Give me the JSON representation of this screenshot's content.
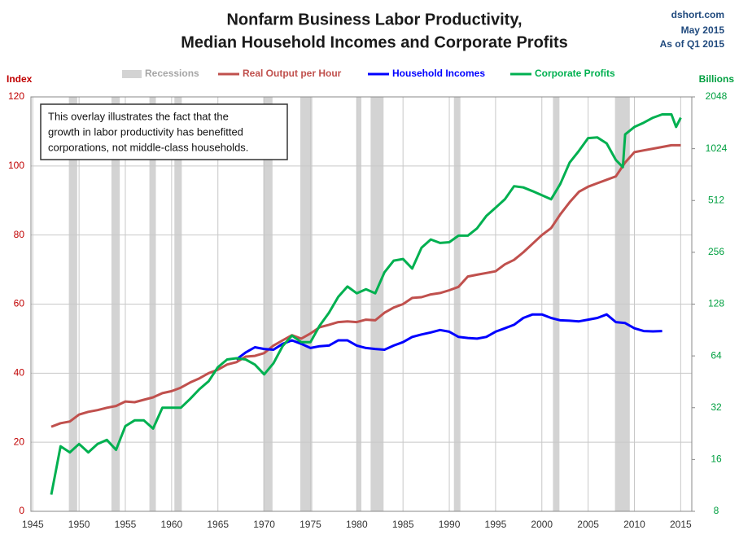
{
  "chart_data": {
    "type": "line",
    "title_lines": [
      "Nonfarm Business Labor Productivity,",
      "Median Household Incomes and Corporate Profits"
    ],
    "source_lines": [
      "dshort.com",
      "May 2015",
      "As of Q1 2015"
    ],
    "annotation_lines": [
      "This overlay illustrates the fact that the",
      "growth in labor productivity  has benefitted",
      "corporations,  not middle-class households."
    ],
    "ylabel": "Index",
    "y2label": "Billions",
    "xlim": [
      1944.8,
      2016.2
    ],
    "xticks": [
      1945,
      1950,
      1955,
      1960,
      1965,
      1970,
      1975,
      1980,
      1985,
      1990,
      1995,
      2000,
      2005,
      2010,
      2015
    ],
    "ylim": [
      0,
      120
    ],
    "yticks": [
      0,
      20,
      40,
      60,
      80,
      100,
      120
    ],
    "y2lim": [
      8,
      2048
    ],
    "y2ticks": [
      8,
      16,
      32,
      64,
      128,
      256,
      512,
      1024,
      2048
    ],
    "y2scale": "log",
    "grid": true,
    "recession_name": "Recessions",
    "recession_color": "#d3d3d3",
    "recessions": [
      [
        1948.9,
        1949.8
      ],
      [
        1953.5,
        1954.4
      ],
      [
        1957.6,
        1958.3
      ],
      [
        1960.3,
        1961.1
      ],
      [
        1969.9,
        1970.9
      ],
      [
        1973.9,
        1975.2
      ],
      [
        1980.0,
        1980.5
      ],
      [
        1981.5,
        1982.9
      ],
      [
        1990.5,
        1991.2
      ],
      [
        2001.2,
        2001.9
      ],
      [
        2007.9,
        2009.5
      ]
    ],
    "series": [
      {
        "name": "Real Output per Hour",
        "color": "#c0504d",
        "axis": "y",
        "x": [
          1947,
          1948,
          1949,
          1950,
          1951,
          1952,
          1953,
          1954,
          1955,
          1956,
          1957,
          1958,
          1959,
          1960,
          1961,
          1962,
          1963,
          1964,
          1965,
          1966,
          1967,
          1968,
          1969,
          1970,
          1971,
          1972,
          1973,
          1974,
          1975,
          1976,
          1977,
          1978,
          1979,
          1980,
          1981,
          1982,
          1983,
          1984,
          1985,
          1986,
          1987,
          1988,
          1989,
          1990,
          1991,
          1992,
          1993,
          1994,
          1995,
          1996,
          1997,
          1998,
          1999,
          2000,
          2001,
          2002,
          2003,
          2004,
          2005,
          2006,
          2007,
          2008,
          2009,
          2010,
          2011,
          2012,
          2013,
          2014,
          2015
        ],
        "values": [
          24.5,
          25.5,
          26,
          28,
          28.8,
          29.3,
          30,
          30.5,
          31.8,
          31.6,
          32.3,
          33,
          34.2,
          34.8,
          35.8,
          37.3,
          38.5,
          40,
          41,
          42.5,
          43.2,
          44.8,
          45,
          45.8,
          48,
          49.5,
          51,
          50,
          51.5,
          53.3,
          54,
          54.8,
          55,
          54.8,
          55.5,
          55.3,
          57.5,
          59,
          60,
          61.8,
          62,
          62.8,
          63.2,
          64,
          65,
          68,
          68.5,
          69,
          69.5,
          71.5,
          72.8,
          75,
          77.5,
          80,
          82,
          86,
          89.5,
          92.5,
          94,
          95,
          96,
          97,
          101,
          104,
          104.5,
          105,
          105.5,
          106,
          106
        ]
      },
      {
        "name": "Household Incomes",
        "color": "#0000ff",
        "axis": "y",
        "x": [
          1967,
          1968,
          1969,
          1970,
          1971,
          1972,
          1973,
          1974,
          1975,
          1976,
          1977,
          1978,
          1979,
          1980,
          1981,
          1982,
          1983,
          1984,
          1985,
          1986,
          1987,
          1988,
          1989,
          1990,
          1991,
          1992,
          1993,
          1994,
          1995,
          1996,
          1997,
          1998,
          1999,
          2000,
          2001,
          2002,
          2003,
          2004,
          2005,
          2006,
          2007,
          2008,
          2009,
          2010,
          2011,
          2012,
          2013
        ],
        "values": [
          44,
          46,
          47.5,
          47,
          46.8,
          48.5,
          49.5,
          48.5,
          47.3,
          47.8,
          48,
          49.5,
          49.5,
          48,
          47.3,
          47,
          46.8,
          48,
          49,
          50.5,
          51.2,
          51.8,
          52.5,
          52,
          50.5,
          50.2,
          50,
          50.5,
          52,
          53,
          54,
          56,
          57,
          57,
          56,
          55.3,
          55.2,
          55,
          55.5,
          56,
          57,
          54.8,
          54.5,
          53,
          52.2,
          52.1,
          52.2
        ]
      },
      {
        "name": "Corporate Profits",
        "color": "#00b050",
        "axis": "y2",
        "x": [
          1947,
          1947.5,
          1948,
          1949,
          1950,
          1951,
          1952,
          1953,
          1954,
          1955,
          1956,
          1957,
          1958,
          1959,
          1960,
          1961,
          1962,
          1963,
          1964,
          1965,
          1966,
          1967,
          1968,
          1969,
          1970,
          1971,
          1972,
          1973,
          1974,
          1975,
          1976,
          1977,
          1978,
          1979,
          1980,
          1981,
          1982,
          1983,
          1984,
          1985,
          1986,
          1987,
          1988,
          1989,
          1990,
          1991,
          1992,
          1993,
          1994,
          1995,
          1996,
          1997,
          1998,
          1999,
          2000,
          2001,
          2002,
          2003,
          2004,
          2005,
          2006,
          2007,
          2008,
          2008.75,
          2009,
          2010,
          2011,
          2012,
          2013,
          2014,
          2014.5,
          2015
        ],
        "values": [
          10,
          13.8,
          19.1,
          17.6,
          19.7,
          17.6,
          19.7,
          20.8,
          18.2,
          25,
          27,
          27,
          24.2,
          32,
          32,
          32,
          36,
          41,
          45.6,
          55,
          61,
          62,
          61,
          57,
          50,
          58,
          73,
          84,
          77,
          77,
          96,
          114,
          141,
          162,
          148,
          156,
          148,
          196,
          229,
          234,
          206,
          272,
          304,
          290,
          293,
          320,
          320,
          353,
          416,
          465,
          520,
          620,
          610,
          580,
          550,
          520,
          640,
          850,
          995,
          1180,
          1190,
          1100,
          880,
          800,
          1240,
          1370,
          1450,
          1550,
          1620,
          1620,
          1370,
          1550
        ]
      }
    ]
  }
}
